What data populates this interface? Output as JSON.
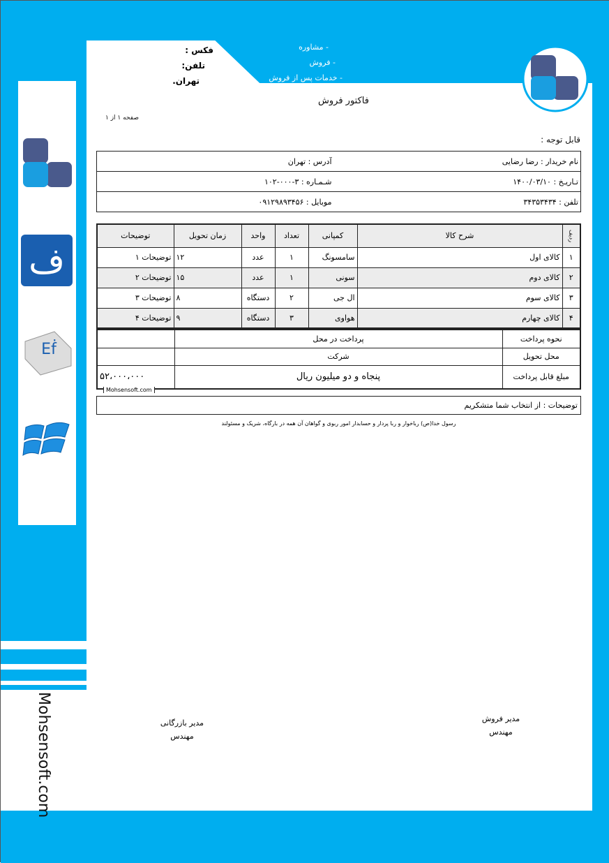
{
  "header": {
    "services": [
      "- مشاوره",
      "- فروش",
      "- خدمات پس از فروش"
    ],
    "fax": "فکس :",
    "phone": "تلفن:",
    "city": "تهران."
  },
  "title": "فاکتور فروش",
  "page": "صفحه ۱ از ۱",
  "attention": "قابل توجه :",
  "info": {
    "buyer": "نام خریدار : رضا رضایی",
    "address": "آدرس : تهران",
    "date": "تـاریـخ : ۱۴۰۰/۰۳/۱۰",
    "number": "شـمـاره : ۳-۰۰۰-۱۰۲",
    "phone": "تلفن : ۳۴۳۵۳۴۳۴",
    "mobile": "موبایل : ۰۹۱۲۹۸۹۳۴۵۶"
  },
  "items": {
    "headers": [
      "ردیف",
      "شرح کالا",
      "کمپانی",
      "تعداد",
      "واحد",
      "زمان تحویل",
      "توضیحات"
    ],
    "rows": [
      [
        "۱",
        "کالای اول",
        "سامسونگ",
        "۱",
        "عدد",
        "۱۲",
        "توضیحات ۱"
      ],
      [
        "۲",
        "کالای دوم",
        "سونی",
        "۱",
        "عدد",
        "۱۵",
        "توضیحات ۲"
      ],
      [
        "۳",
        "کالای سوم",
        "ال جی",
        "۲",
        "دستگاه",
        "۸",
        "توضیحات ۳"
      ],
      [
        "۴",
        "کالای چهارم",
        "هواوی",
        "۳",
        "دستگاه",
        "۹",
        "توضیحات ۴"
      ]
    ]
  },
  "summary": {
    "payment_label": "نحوه پرداخت",
    "payment": "پرداخت در محل",
    "delivery_label": "محل تحویل",
    "delivery": "شرکت",
    "amount_label": "مبلغ قابل پرداخت",
    "amount_words": "پنجاه و دو میلیون  ریال",
    "amount": "۵۲،۰۰۰،۰۰۰"
  },
  "watermark": "Mohsensoft.com",
  "notes": "توضیحات : از انتخاب شما متشکریم",
  "quote": "رسول خدا(ص) رباخوار و ربا پردار و حسابدار امور ربوی و گواهان آن همه در بارگاه، شریک و مسئولند",
  "signatures": {
    "left": [
      "مدیر بازرگانی",
      "مهندس"
    ],
    "right": [
      "مدیر فروش",
      "مهندس"
    ]
  },
  "side_text": "Mohsensoft.com",
  "colors": {
    "brand": "#00aeef",
    "logo_dark": "#4a5a8c",
    "logo_light": "#1a9ee0"
  }
}
